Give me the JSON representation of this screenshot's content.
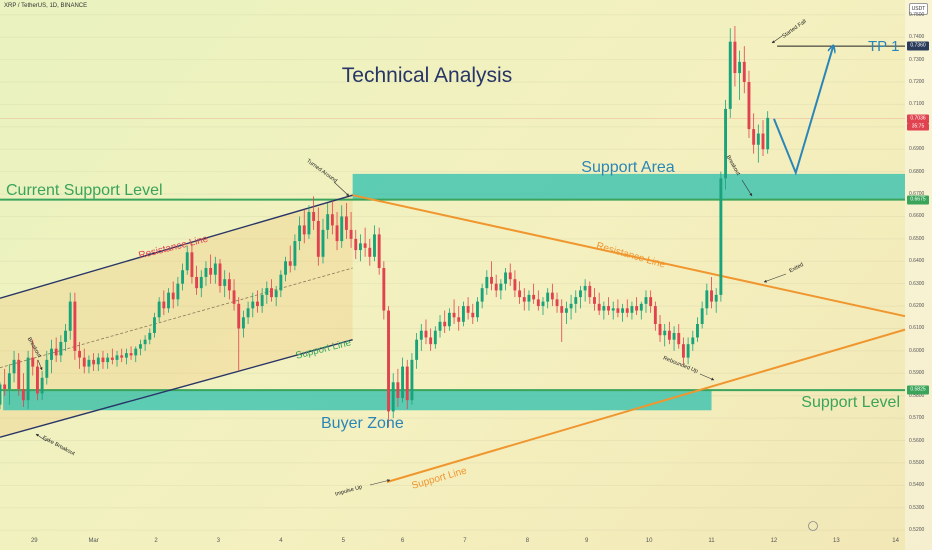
{
  "header": {
    "symbol": "XRP / TetherUS, 1D, BINANCE",
    "unit": "USDT"
  },
  "colors": {
    "up": "#1aa37a",
    "down": "#e0434f",
    "green": "#3aa45b",
    "teal": "#2bbfae",
    "orange": "#f0962e",
    "navy": "#283566",
    "blue": "#2b86b8"
  },
  "labels": {
    "title": "Technical Analysis",
    "current_support": "Current Support Level",
    "support_area": "Support Area",
    "support_level": "Support Level",
    "buyer_zone": "Buyer Zone",
    "tp1": "TP 1",
    "resistance_line_left": "Resistance Line",
    "support_line_left": "Support Line",
    "resistance_line_right": "Resistance Line",
    "support_line_right": "Support Line",
    "started_fall": "Started Fall",
    "turned_around": "Turned Around",
    "breakout_left": "Breakout",
    "breakout_right": "Breakout",
    "fake_breakout": "Fake Breakout",
    "impulse_up": "Impulse Up",
    "rebounded_up": "Rebounded Up",
    "exited": "Exited"
  },
  "chart_data": {
    "type": "candlestick",
    "y_ticks": [
      "0.7500",
      "0.7400",
      "0.7300",
      "0.7200",
      "0.7100",
      "0.7000",
      "0.6900",
      "0.6800",
      "0.6700",
      "0.6600",
      "0.6500",
      "0.6400",
      "0.6300",
      "0.6200",
      "0.6100",
      "0.6000",
      "0.5900",
      "0.5800",
      "0.5700",
      "0.5600",
      "0.5500",
      "0.5400",
      "0.5300",
      "0.5200"
    ],
    "ylim": [
      0.5165,
      0.7566
    ],
    "x_ticks": [
      {
        "label": "29",
        "pos": 0.2
      },
      {
        "label": "Mar",
        "pos": 2.1
      },
      {
        "label": "2",
        "pos": 4.1
      },
      {
        "label": "3",
        "pos": 6.1
      },
      {
        "label": "4",
        "pos": 8.1
      },
      {
        "label": "5",
        "pos": 10.1
      },
      {
        "label": "6",
        "pos": 12.0
      },
      {
        "label": "7",
        "pos": 14.0
      },
      {
        "label": "8",
        "pos": 16.0
      },
      {
        "label": "9",
        "pos": 17.9
      },
      {
        "label": "10",
        "pos": 19.9
      },
      {
        "label": "11",
        "pos": 21.9
      },
      {
        "label": "12",
        "pos": 23.9
      },
      {
        "label": "13",
        "pos": 25.9
      },
      {
        "label": "14",
        "pos": 27.8
      }
    ],
    "xlim": [
      -0.9,
      28.1
    ],
    "price_tags": [
      {
        "value": "0.7360",
        "y": 0.736
      },
      {
        "value": "0.7036",
        "y": 0.7036
      },
      {
        "value": "0.6675",
        "y": 0.6675
      },
      {
        "value": "0.5825",
        "y": 0.5825
      }
    ],
    "countdown": "35:75",
    "levels": {
      "current_support": 0.6675,
      "support_level": 0.5825,
      "support_area": [
        0.6675,
        0.679
      ],
      "buyer_zone": [
        0.5735,
        0.5825
      ],
      "tp1": 0.736
    },
    "channel": {
      "top": [
        [
          -0.9,
          0.6235
        ],
        [
          10.4,
          0.6695
        ]
      ],
      "bottom": [
        [
          -0.9,
          0.5615
        ],
        [
          10.4,
          0.605
        ]
      ],
      "mid": [
        [
          -0.9,
          0.5925
        ],
        [
          10.4,
          0.637
        ]
      ]
    },
    "triangle": {
      "resistance": [
        [
          10.4,
          0.6695
        ],
        [
          28.1,
          0.6155
        ]
      ],
      "support": [
        [
          11.5,
          0.5415
        ],
        [
          28.1,
          0.6095
        ]
      ]
    },
    "projection": [
      [
        23.9,
        0.7036
      ],
      [
        24.6,
        0.6795
      ],
      [
        25.8,
        0.736
      ]
    ],
    "candles": [
      [
        -0.9,
        0.576,
        0.586,
        0.574,
        0.585
      ],
      [
        -0.75,
        0.585,
        0.592,
        0.58,
        0.583
      ],
      [
        -0.6,
        0.583,
        0.594,
        0.576,
        0.59
      ],
      [
        -0.45,
        0.59,
        0.6,
        0.586,
        0.596
      ],
      [
        -0.3,
        0.596,
        0.599,
        0.58,
        0.583
      ],
      [
        -0.15,
        0.583,
        0.59,
        0.575,
        0.578
      ],
      [
        0.0,
        0.578,
        0.6,
        0.574,
        0.597
      ],
      [
        0.15,
        0.597,
        0.605,
        0.589,
        0.593
      ],
      [
        0.3,
        0.593,
        0.596,
        0.578,
        0.581
      ],
      [
        0.45,
        0.581,
        0.591,
        0.578,
        0.588
      ],
      [
        0.6,
        0.588,
        0.6,
        0.585,
        0.596
      ],
      [
        0.75,
        0.596,
        0.605,
        0.59,
        0.601
      ],
      [
        0.9,
        0.601,
        0.606,
        0.595,
        0.598
      ],
      [
        1.05,
        0.598,
        0.607,
        0.595,
        0.604
      ],
      [
        1.2,
        0.604,
        0.612,
        0.6,
        0.609
      ],
      [
        1.35,
        0.609,
        0.626,
        0.605,
        0.622
      ],
      [
        1.5,
        0.622,
        0.626,
        0.596,
        0.6
      ],
      [
        1.65,
        0.6,
        0.604,
        0.592,
        0.597
      ],
      [
        1.8,
        0.597,
        0.601,
        0.59,
        0.593
      ],
      [
        1.95,
        0.593,
        0.598,
        0.59,
        0.596
      ],
      [
        2.1,
        0.596,
        0.599,
        0.591,
        0.594
      ],
      [
        2.25,
        0.594,
        0.599,
        0.591,
        0.597
      ],
      [
        2.4,
        0.597,
        0.6,
        0.592,
        0.595
      ],
      [
        2.55,
        0.595,
        0.599,
        0.592,
        0.597
      ],
      [
        2.7,
        0.597,
        0.601,
        0.594,
        0.596
      ],
      [
        2.85,
        0.596,
        0.6,
        0.593,
        0.598
      ],
      [
        3.0,
        0.598,
        0.601,
        0.595,
        0.597
      ],
      [
        3.15,
        0.597,
        0.601,
        0.594,
        0.599
      ],
      [
        3.3,
        0.599,
        0.602,
        0.596,
        0.598
      ],
      [
        3.45,
        0.598,
        0.602,
        0.595,
        0.601
      ],
      [
        3.6,
        0.601,
        0.605,
        0.598,
        0.603
      ],
      [
        3.75,
        0.603,
        0.607,
        0.6,
        0.605
      ],
      [
        3.9,
        0.605,
        0.61,
        0.603,
        0.608
      ],
      [
        4.05,
        0.608,
        0.617,
        0.606,
        0.615
      ],
      [
        4.2,
        0.615,
        0.624,
        0.613,
        0.622
      ],
      [
        4.35,
        0.622,
        0.627,
        0.616,
        0.619
      ],
      [
        4.5,
        0.619,
        0.628,
        0.617,
        0.626
      ],
      [
        4.65,
        0.626,
        0.631,
        0.619,
        0.623
      ],
      [
        4.8,
        0.623,
        0.633,
        0.62,
        0.63
      ],
      [
        4.95,
        0.63,
        0.639,
        0.627,
        0.636
      ],
      [
        5.1,
        0.636,
        0.647,
        0.634,
        0.644
      ],
      [
        5.25,
        0.644,
        0.648,
        0.63,
        0.633
      ],
      [
        5.4,
        0.633,
        0.638,
        0.625,
        0.628
      ],
      [
        5.55,
        0.628,
        0.636,
        0.624,
        0.633
      ],
      [
        5.7,
        0.633,
        0.64,
        0.629,
        0.637
      ],
      [
        5.85,
        0.637,
        0.643,
        0.63,
        0.634
      ],
      [
        6.0,
        0.634,
        0.642,
        0.63,
        0.639
      ],
      [
        6.15,
        0.639,
        0.641,
        0.626,
        0.629
      ],
      [
        6.3,
        0.629,
        0.636,
        0.624,
        0.632
      ],
      [
        6.45,
        0.632,
        0.635,
        0.623,
        0.627
      ],
      [
        6.6,
        0.627,
        0.632,
        0.618,
        0.621
      ],
      [
        6.75,
        0.621,
        0.624,
        0.591,
        0.61
      ],
      [
        6.9,
        0.61,
        0.618,
        0.606,
        0.615
      ],
      [
        7.05,
        0.615,
        0.622,
        0.612,
        0.619
      ],
      [
        7.2,
        0.619,
        0.626,
        0.615,
        0.622
      ],
      [
        7.35,
        0.622,
        0.627,
        0.617,
        0.62
      ],
      [
        7.5,
        0.62,
        0.628,
        0.617,
        0.625
      ],
      [
        7.65,
        0.625,
        0.631,
        0.621,
        0.628
      ],
      [
        7.8,
        0.628,
        0.632,
        0.622,
        0.624
      ],
      [
        7.95,
        0.624,
        0.629,
        0.62,
        0.627
      ],
      [
        8.1,
        0.627,
        0.636,
        0.624,
        0.634
      ],
      [
        8.25,
        0.634,
        0.642,
        0.631,
        0.64
      ],
      [
        8.4,
        0.64,
        0.647,
        0.635,
        0.638
      ],
      [
        8.55,
        0.638,
        0.652,
        0.636,
        0.649
      ],
      [
        8.7,
        0.649,
        0.66,
        0.645,
        0.656
      ],
      [
        8.85,
        0.656,
        0.663,
        0.648,
        0.652
      ],
      [
        9.0,
        0.652,
        0.665,
        0.65,
        0.662
      ],
      [
        9.15,
        0.662,
        0.669,
        0.654,
        0.658
      ],
      [
        9.3,
        0.658,
        0.664,
        0.638,
        0.642
      ],
      [
        9.45,
        0.642,
        0.659,
        0.639,
        0.654
      ],
      [
        9.6,
        0.654,
        0.666,
        0.65,
        0.661
      ],
      [
        9.75,
        0.661,
        0.667,
        0.652,
        0.656
      ],
      [
        9.9,
        0.656,
        0.662,
        0.645,
        0.649
      ],
      [
        10.05,
        0.649,
        0.665,
        0.646,
        0.66
      ],
      [
        10.2,
        0.66,
        0.666,
        0.65,
        0.654
      ],
      [
        10.35,
        0.654,
        0.662,
        0.646,
        0.65
      ],
      [
        10.5,
        0.65,
        0.654,
        0.641,
        0.645
      ],
      [
        10.65,
        0.645,
        0.652,
        0.64,
        0.648
      ],
      [
        10.8,
        0.648,
        0.655,
        0.642,
        0.646
      ],
      [
        10.95,
        0.646,
        0.65,
        0.638,
        0.642
      ],
      [
        11.1,
        0.642,
        0.656,
        0.64,
        0.652
      ],
      [
        11.25,
        0.652,
        0.655,
        0.634,
        0.637
      ],
      [
        11.4,
        0.637,
        0.64,
        0.614,
        0.618
      ],
      [
        11.55,
        0.618,
        0.62,
        0.566,
        0.573
      ],
      [
        11.7,
        0.573,
        0.59,
        0.57,
        0.586
      ],
      [
        11.85,
        0.586,
        0.592,
        0.575,
        0.579
      ],
      [
        12.0,
        0.579,
        0.597,
        0.577,
        0.593
      ],
      [
        12.15,
        0.593,
        0.596,
        0.574,
        0.578
      ],
      [
        12.3,
        0.578,
        0.599,
        0.576,
        0.596
      ],
      [
        12.45,
        0.596,
        0.608,
        0.592,
        0.605
      ],
      [
        12.6,
        0.605,
        0.612,
        0.6,
        0.609
      ],
      [
        12.75,
        0.609,
        0.614,
        0.603,
        0.606
      ],
      [
        12.9,
        0.606,
        0.61,
        0.6,
        0.603
      ],
      [
        13.05,
        0.603,
        0.611,
        0.601,
        0.609
      ],
      [
        13.2,
        0.609,
        0.616,
        0.606,
        0.613
      ],
      [
        13.35,
        0.613,
        0.618,
        0.608,
        0.611
      ],
      [
        13.5,
        0.611,
        0.619,
        0.609,
        0.617
      ],
      [
        13.65,
        0.617,
        0.623,
        0.612,
        0.615
      ],
      [
        13.8,
        0.615,
        0.62,
        0.609,
        0.613
      ],
      [
        13.95,
        0.613,
        0.622,
        0.611,
        0.62
      ],
      [
        14.1,
        0.62,
        0.624,
        0.614,
        0.617
      ],
      [
        14.25,
        0.617,
        0.621,
        0.612,
        0.615
      ],
      [
        14.4,
        0.615,
        0.624,
        0.613,
        0.622
      ],
      [
        14.55,
        0.622,
        0.63,
        0.619,
        0.628
      ],
      [
        14.7,
        0.628,
        0.636,
        0.625,
        0.633
      ],
      [
        14.85,
        0.633,
        0.64,
        0.627,
        0.63
      ],
      [
        15.0,
        0.63,
        0.634,
        0.624,
        0.627
      ],
      [
        15.15,
        0.627,
        0.632,
        0.623,
        0.63
      ],
      [
        15.3,
        0.63,
        0.637,
        0.627,
        0.635
      ],
      [
        15.45,
        0.635,
        0.639,
        0.629,
        0.632
      ],
      [
        15.6,
        0.632,
        0.636,
        0.624,
        0.627
      ],
      [
        15.75,
        0.627,
        0.631,
        0.621,
        0.624
      ],
      [
        15.9,
        0.624,
        0.628,
        0.618,
        0.622
      ],
      [
        16.05,
        0.622,
        0.627,
        0.618,
        0.625
      ],
      [
        16.2,
        0.625,
        0.63,
        0.621,
        0.623
      ],
      [
        16.35,
        0.623,
        0.627,
        0.618,
        0.62
      ],
      [
        16.5,
        0.62,
        0.624,
        0.616,
        0.622
      ],
      [
        16.65,
        0.622,
        0.628,
        0.619,
        0.626
      ],
      [
        16.8,
        0.626,
        0.63,
        0.62,
        0.623
      ],
      [
        16.95,
        0.623,
        0.626,
        0.617,
        0.62
      ],
      [
        17.1,
        0.62,
        0.623,
        0.604,
        0.617
      ],
      [
        17.25,
        0.617,
        0.622,
        0.612,
        0.619
      ],
      [
        17.4,
        0.619,
        0.625,
        0.614,
        0.621
      ],
      [
        17.55,
        0.621,
        0.627,
        0.617,
        0.624
      ],
      [
        17.7,
        0.624,
        0.629,
        0.619,
        0.627
      ],
      [
        17.85,
        0.627,
        0.632,
        0.622,
        0.629
      ],
      [
        18.0,
        0.629,
        0.631,
        0.621,
        0.624
      ],
      [
        18.15,
        0.624,
        0.628,
        0.618,
        0.621
      ],
      [
        18.3,
        0.621,
        0.626,
        0.616,
        0.618
      ],
      [
        18.45,
        0.618,
        0.622,
        0.614,
        0.62
      ],
      [
        18.6,
        0.62,
        0.624,
        0.616,
        0.618
      ],
      [
        18.75,
        0.618,
        0.622,
        0.614,
        0.619
      ],
      [
        18.9,
        0.619,
        0.623,
        0.615,
        0.617
      ],
      [
        19.05,
        0.617,
        0.621,
        0.613,
        0.619
      ],
      [
        19.2,
        0.619,
        0.623,
        0.615,
        0.617
      ],
      [
        19.35,
        0.617,
        0.622,
        0.614,
        0.62
      ],
      [
        19.5,
        0.62,
        0.624,
        0.616,
        0.618
      ],
      [
        19.65,
        0.618,
        0.622,
        0.614,
        0.621
      ],
      [
        19.8,
        0.621,
        0.627,
        0.617,
        0.624
      ],
      [
        19.95,
        0.624,
        0.627,
        0.617,
        0.62
      ],
      [
        20.1,
        0.62,
        0.622,
        0.609,
        0.612
      ],
      [
        20.25,
        0.612,
        0.616,
        0.604,
        0.607
      ],
      [
        20.4,
        0.607,
        0.612,
        0.602,
        0.609
      ],
      [
        20.55,
        0.609,
        0.613,
        0.603,
        0.605
      ],
      [
        20.7,
        0.605,
        0.611,
        0.6,
        0.608
      ],
      [
        20.85,
        0.608,
        0.612,
        0.601,
        0.603
      ],
      [
        21.0,
        0.603,
        0.606,
        0.594,
        0.597
      ],
      [
        21.15,
        0.597,
        0.606,
        0.594,
        0.603
      ],
      [
        21.3,
        0.603,
        0.609,
        0.6,
        0.606
      ],
      [
        21.45,
        0.606,
        0.615,
        0.604,
        0.612
      ],
      [
        21.6,
        0.612,
        0.622,
        0.61,
        0.619
      ],
      [
        21.75,
        0.619,
        0.63,
        0.616,
        0.627
      ],
      [
        21.9,
        0.627,
        0.633,
        0.619,
        0.622
      ],
      [
        22.05,
        0.622,
        0.628,
        0.617,
        0.625
      ],
      [
        22.2,
        0.625,
        0.68,
        0.622,
        0.677
      ],
      [
        22.35,
        0.677,
        0.712,
        0.672,
        0.708
      ],
      [
        22.5,
        0.708,
        0.744,
        0.704,
        0.738
      ],
      [
        22.65,
        0.738,
        0.745,
        0.718,
        0.724
      ],
      [
        22.8,
        0.724,
        0.734,
        0.712,
        0.729
      ],
      [
        22.95,
        0.729,
        0.736,
        0.715,
        0.72
      ],
      [
        23.1,
        0.72,
        0.725,
        0.695,
        0.699
      ],
      [
        23.25,
        0.699,
        0.706,
        0.688,
        0.692
      ],
      [
        23.4,
        0.692,
        0.701,
        0.684,
        0.697
      ],
      [
        23.55,
        0.697,
        0.703,
        0.687,
        0.69
      ],
      [
        23.7,
        0.69,
        0.707,
        0.688,
        0.704
      ]
    ]
  }
}
